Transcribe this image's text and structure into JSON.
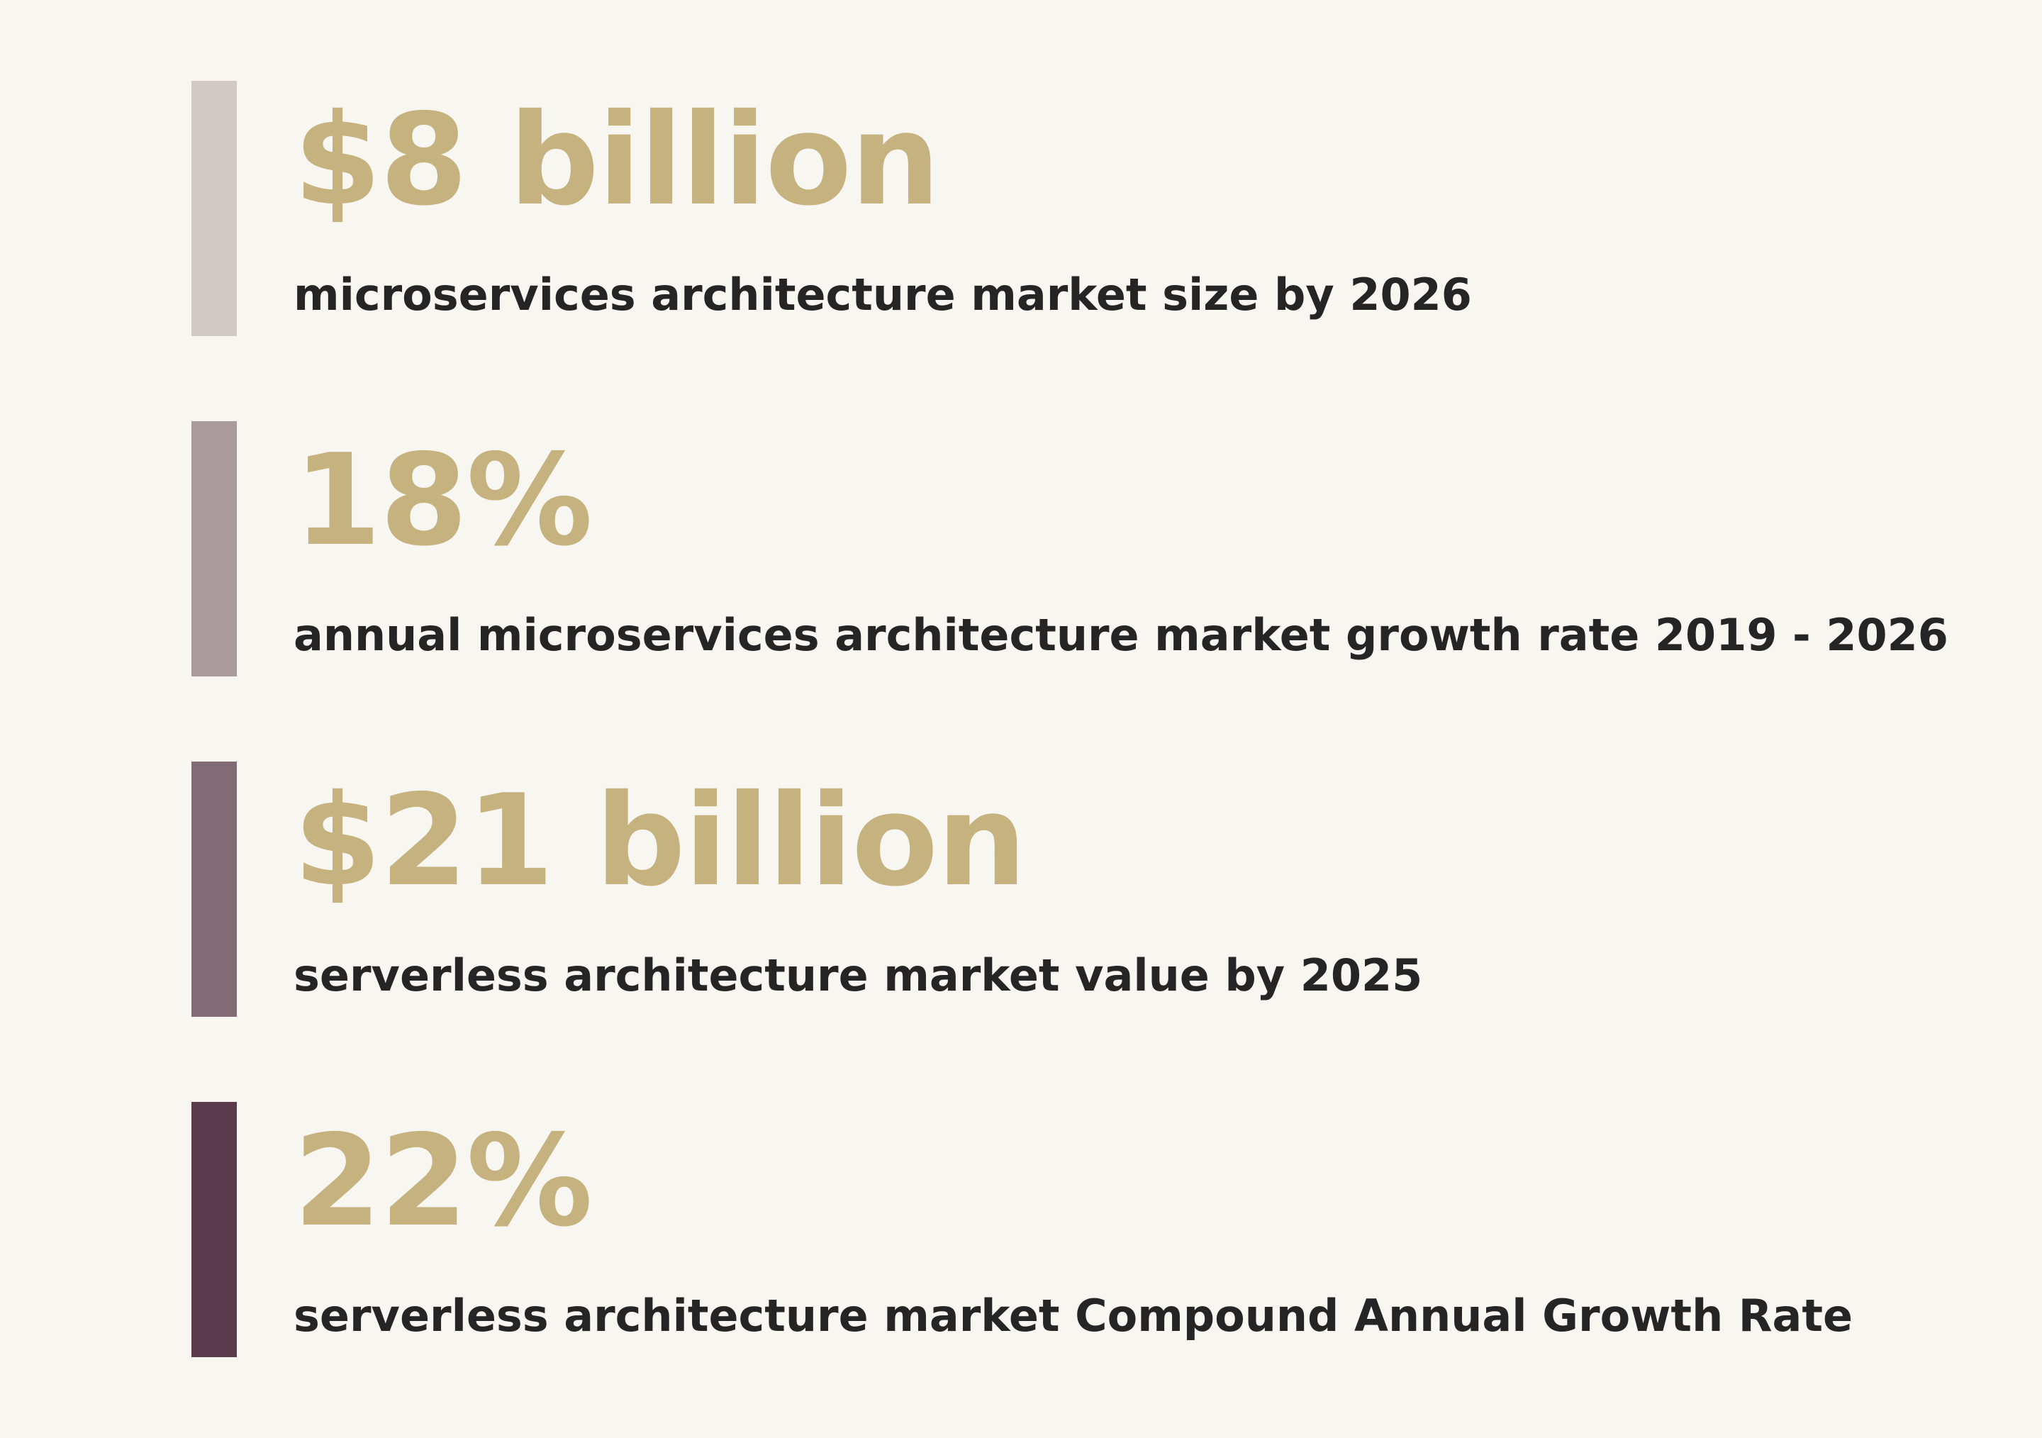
{
  "stats": [
    {
      "value": "$8 billion",
      "label": "microservices architecture market size by 2026",
      "bar_color": "#d2cac7"
    },
    {
      "value": "18%",
      "label": "annual microservices architecture market growth rate 2019 - 2026",
      "bar_color": "#aa9a9e"
    },
    {
      "value": "$21 billion",
      "label": "serverless architecture market value by 2025",
      "bar_color": "#836b75"
    },
    {
      "value": "22%",
      "label": "serverless architecture market Compound Annual Growth Rate",
      "bar_color": "#5b3b4b"
    }
  ],
  "colors": {
    "background": "#f8f6f1",
    "value_text": "#c6b27f",
    "label_text": "#252525"
  }
}
